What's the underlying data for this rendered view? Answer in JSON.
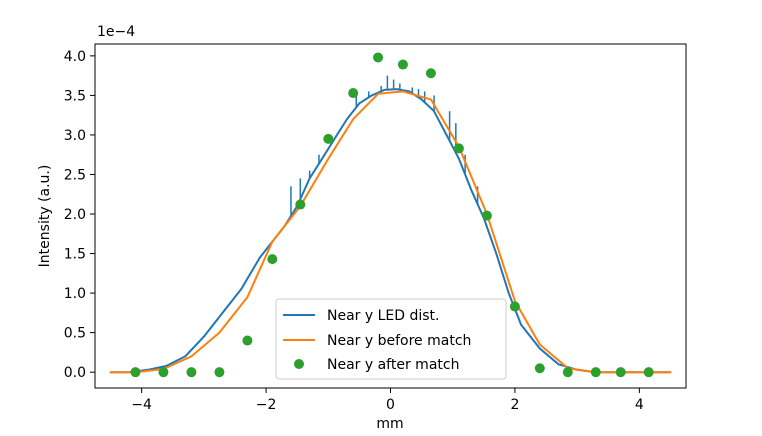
{
  "chart_data": {
    "type": "line",
    "title": "",
    "xlabel": "mm",
    "ylabel": "Intensity (a.u.)",
    "y_offset_text": "1e−4",
    "xlim": [
      -4.75,
      4.75
    ],
    "ylim": [
      -0.2,
      4.15
    ],
    "x_ticks": [
      -4,
      -2,
      0,
      2,
      4
    ],
    "x_tick_labels": [
      "−4",
      "−2",
      "0",
      "2",
      "4"
    ],
    "y_ticks": [
      0.0,
      0.5,
      1.0,
      1.5,
      2.0,
      2.5,
      3.0,
      3.5,
      4.0
    ],
    "y_tick_labels": [
      "0.0",
      "0.5",
      "1.0",
      "1.5",
      "2.0",
      "2.5",
      "3.0",
      "3.5",
      "4.0"
    ],
    "grid": false,
    "legend_position": "lower-center",
    "series": [
      {
        "name": "Near y LED dist.",
        "style": "line",
        "color": "#1f77b4",
        "x": [
          -4.5,
          -4.2,
          -3.9,
          -3.6,
          -3.3,
          -3.0,
          -2.7,
          -2.4,
          -2.1,
          -1.9,
          -1.7,
          -1.5,
          -1.3,
          -1.1,
          -0.9,
          -0.7,
          -0.5,
          -0.3,
          -0.1,
          0.1,
          0.3,
          0.5,
          0.7,
          0.9,
          1.1,
          1.3,
          1.5,
          1.7,
          1.9,
          2.1,
          2.4,
          2.7,
          3.0,
          3.3,
          3.6,
          3.9,
          4.2,
          4.5
        ],
        "y": [
          0.0,
          0.0,
          0.03,
          0.08,
          0.2,
          0.45,
          0.75,
          1.05,
          1.45,
          1.65,
          1.85,
          2.1,
          2.45,
          2.7,
          2.95,
          3.2,
          3.4,
          3.5,
          3.57,
          3.58,
          3.55,
          3.45,
          3.3,
          3.0,
          2.7,
          2.3,
          1.95,
          1.5,
          1.0,
          0.6,
          0.3,
          0.1,
          0.03,
          0.0,
          0.0,
          0.0,
          0.0,
          0.0
        ],
        "spikes": [
          {
            "x": -1.6,
            "y": 2.35
          },
          {
            "x": -1.45,
            "y": 2.45
          },
          {
            "x": -1.3,
            "y": 2.55
          },
          {
            "x": -1.15,
            "y": 2.75
          },
          {
            "x": -0.95,
            "y": 2.95
          },
          {
            "x": -0.55,
            "y": 3.5
          },
          {
            "x": -0.35,
            "y": 3.55
          },
          {
            "x": -0.15,
            "y": 3.62
          },
          {
            "x": -0.05,
            "y": 3.75
          },
          {
            "x": 0.05,
            "y": 3.7
          },
          {
            "x": 0.15,
            "y": 3.65
          },
          {
            "x": 0.35,
            "y": 3.6
          },
          {
            "x": 0.45,
            "y": 3.58
          },
          {
            "x": 0.55,
            "y": 3.55
          },
          {
            "x": 0.7,
            "y": 3.5
          },
          {
            "x": 0.95,
            "y": 3.3
          },
          {
            "x": 1.05,
            "y": 3.15
          },
          {
            "x": 1.2,
            "y": 2.75
          },
          {
            "x": 1.4,
            "y": 2.35
          }
        ]
      },
      {
        "name": "Near y before match",
        "style": "line",
        "color": "#ff7f0e",
        "x": [
          -4.5,
          -4.1,
          -3.65,
          -3.2,
          -2.75,
          -2.3,
          -1.9,
          -1.45,
          -1.0,
          -0.6,
          -0.2,
          0.2,
          0.65,
          1.1,
          1.55,
          2.0,
          2.4,
          2.85,
          3.3,
          3.7,
          4.15,
          4.5
        ],
        "y": [
          0.0,
          0.0,
          0.04,
          0.2,
          0.5,
          0.95,
          1.65,
          2.1,
          2.7,
          3.2,
          3.52,
          3.55,
          3.45,
          2.85,
          2.0,
          0.9,
          0.35,
          0.05,
          0.0,
          0.0,
          0.0,
          0.0
        ]
      },
      {
        "name": "Near y after match",
        "style": "scatter",
        "color": "#2ca02c",
        "x": [
          -4.1,
          -3.65,
          -3.2,
          -2.75,
          -2.3,
          -1.9,
          -1.45,
          -1.0,
          -0.6,
          -0.2,
          0.2,
          0.65,
          1.1,
          1.55,
          2.0,
          2.4,
          2.85,
          3.3,
          3.7,
          4.15
        ],
        "y": [
          0.0,
          0.0,
          0.0,
          0.0,
          0.4,
          1.43,
          2.12,
          2.95,
          3.53,
          3.98,
          3.89,
          3.78,
          2.83,
          1.98,
          0.83,
          0.05,
          0.0,
          0.0,
          0.0,
          0.0
        ]
      }
    ]
  }
}
